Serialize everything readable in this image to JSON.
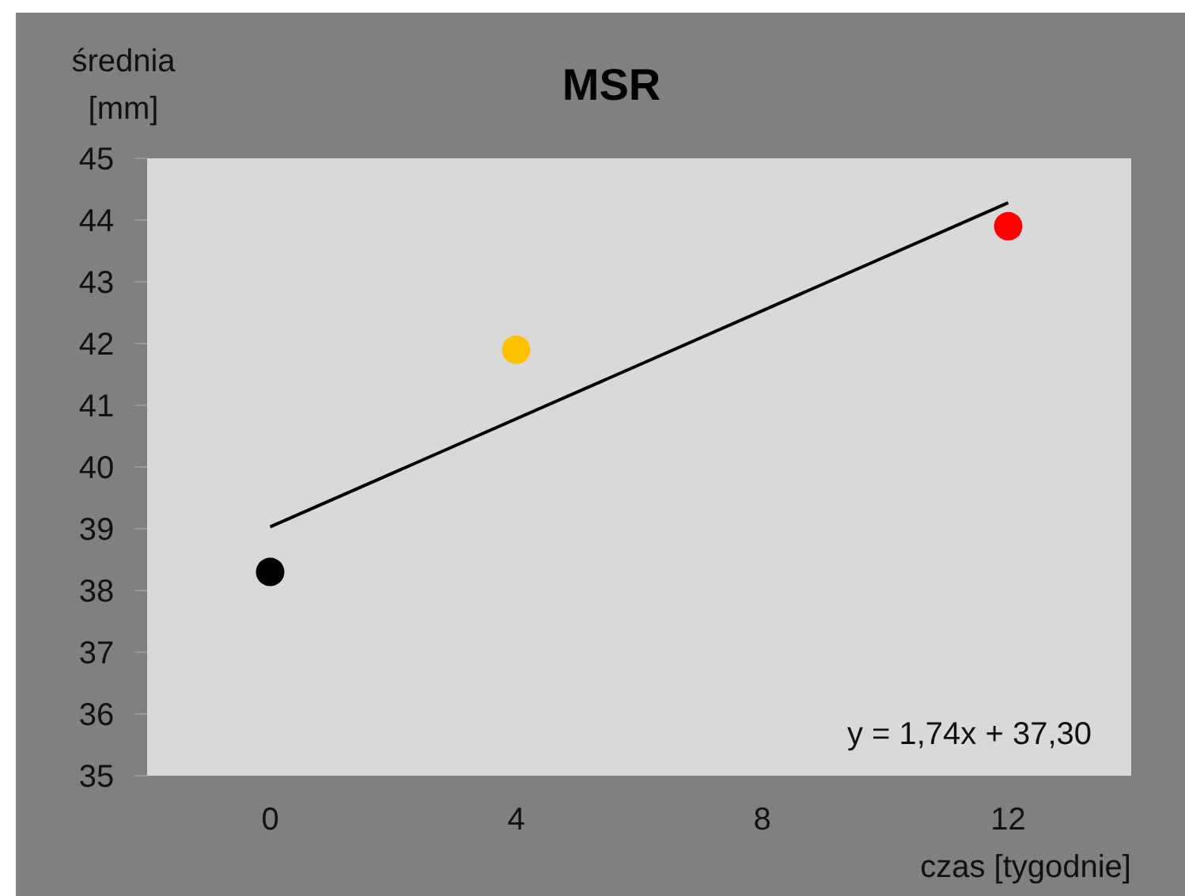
{
  "chart_data": {
    "type": "scatter",
    "title": "MSR",
    "ylabel": "średnia [mm]",
    "xlabel": "czas [tygodnie]",
    "xlim": [
      -2,
      14
    ],
    "xticks": [
      0,
      4,
      8,
      12
    ],
    "ylim": [
      35,
      45
    ],
    "yticks": [
      35,
      36,
      37,
      38,
      39,
      40,
      41,
      42,
      43,
      44,
      45
    ],
    "grid": false,
    "marker": "circle",
    "series": [
      {
        "type": "line",
        "x": [
          0,
          12
        ],
        "values": [
          39.03,
          44.28
        ],
        "color": "#000000",
        "line_style": "solid",
        "marker": "none"
      },
      {
        "x": [
          0,
          4,
          12
        ],
        "values": [
          38.3,
          41.9,
          43.9
        ],
        "colors": [
          "#000000",
          "#ffc000",
          "#ff0000"
        ]
      }
    ],
    "annotations": [
      "y = 1,74x + 37,30"
    ]
  }
}
